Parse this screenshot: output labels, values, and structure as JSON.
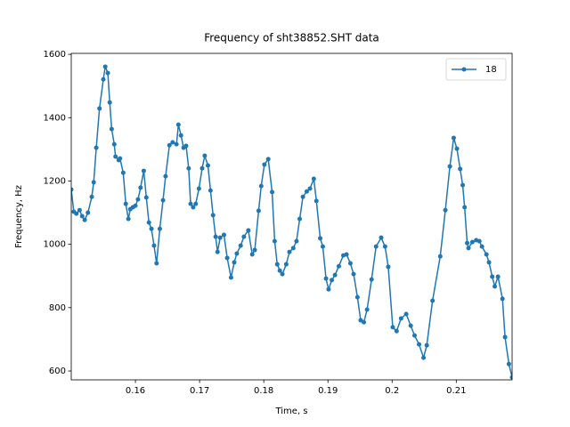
{
  "chart_data": {
    "type": "line",
    "title": "Frequency of sht38852.SHT data",
    "x_label": "Time, s",
    "y_label": "Frequency, Hz",
    "x": [
      0.15,
      0.1504,
      0.1508,
      0.1513,
      0.1517,
      0.1521,
      0.1526,
      0.1532,
      0.1535,
      0.1539,
      0.1544,
      0.155,
      0.1553,
      0.1557,
      0.156,
      0.1563,
      0.1567,
      0.1569,
      0.1574,
      0.1576,
      0.1581,
      0.1585,
      0.1589,
      0.1592,
      0.1596,
      0.16,
      0.1604,
      0.1608,
      0.1613,
      0.1617,
      0.1621,
      0.1625,
      0.1629,
      0.1633,
      0.1638,
      0.1643,
      0.1647,
      0.1653,
      0.1658,
      0.1664,
      0.1667,
      0.1671,
      0.1675,
      0.1679,
      0.1683,
      0.1686,
      0.169,
      0.1694,
      0.1699,
      0.1704,
      0.1708,
      0.1713,
      0.1717,
      0.1721,
      0.1725,
      0.1728,
      0.1732,
      0.1738,
      0.1743,
      0.1749,
      0.1754,
      0.1758,
      0.1764,
      0.1769,
      0.1776,
      0.1782,
      0.1786,
      0.1792,
      0.1796,
      0.1801,
      0.1807,
      0.1813,
      0.1817,
      0.1821,
      0.1825,
      0.1829,
      0.1835,
      0.184,
      0.1846,
      0.1851,
      0.1856,
      0.1861,
      0.1867,
      0.1872,
      0.1878,
      0.1882,
      0.1888,
      0.1892,
      0.1897,
      0.1901,
      0.1906,
      0.1911,
      0.1917,
      0.1924,
      0.1929,
      0.1935,
      0.194,
      0.1946,
      0.1951,
      0.1956,
      0.1961,
      0.1968,
      0.1975,
      0.1983,
      0.1989,
      0.1994,
      0.2001,
      0.2007,
      0.2014,
      0.2022,
      0.2029,
      0.2035,
      0.2042,
      0.2049,
      0.2054,
      0.2063,
      0.2075,
      0.2083,
      0.209,
      0.2096,
      0.2101,
      0.2106,
      0.211,
      0.2113,
      0.2117,
      0.2119,
      0.2125,
      0.2131,
      0.2136,
      0.214,
      0.2147,
      0.2151,
      0.2156,
      0.216,
      0.2165,
      0.2172,
      0.2176,
      0.2182,
      0.2187
    ],
    "series": [
      {
        "name": "18",
        "color": "#1f77b4",
        "values": [
          1173,
          1103,
          1097,
          1108,
          1089,
          1077,
          1100,
          1150,
          1196,
          1305,
          1429,
          1521,
          1561,
          1541,
          1448,
          1364,
          1316,
          1277,
          1266,
          1271,
          1226,
          1128,
          1080,
          1111,
          1117,
          1122,
          1142,
          1179,
          1232,
          1148,
          1069,
          1049,
          996,
          940,
          1049,
          1139,
          1215,
          1313,
          1322,
          1316,
          1378,
          1344,
          1305,
          1311,
          1240,
          1128,
          1117,
          1128,
          1176,
          1240,
          1280,
          1249,
          1170,
          1092,
          1024,
          976,
          1021,
          1030,
          957,
          895,
          943,
          971,
          996,
          1024,
          1044,
          968,
          982,
          1106,
          1184,
          1252,
          1269,
          1165,
          1010,
          937,
          917,
          906,
          937,
          976,
          988,
          1010,
          1080,
          1150,
          1167,
          1176,
          1207,
          1137,
          1019,
          993,
          892,
          858,
          887,
          903,
          931,
          965,
          968,
          940,
          906,
          833,
          760,
          754,
          794,
          889,
          993,
          1021,
          993,
          929,
          738,
          726,
          766,
          780,
          743,
          712,
          684,
          642,
          681,
          822,
          962,
          1108,
          1246,
          1336,
          1302,
          1238,
          1187,
          1117,
          1004,
          988,
          1007,
          1013,
          1010,
          993,
          968,
          943,
          898,
          867,
          898,
          828,
          707,
          622,
          580
        ]
      }
    ],
    "xlim": [
      0.15,
      0.2187
    ],
    "ylim": [
      572,
      1603
    ],
    "xticks": [
      0.16,
      0.17,
      0.18,
      0.19,
      0.2,
      0.21
    ],
    "yticks": [
      600,
      800,
      1000,
      1200,
      1400,
      1600
    ],
    "legend": "upper right",
    "grid": false
  }
}
